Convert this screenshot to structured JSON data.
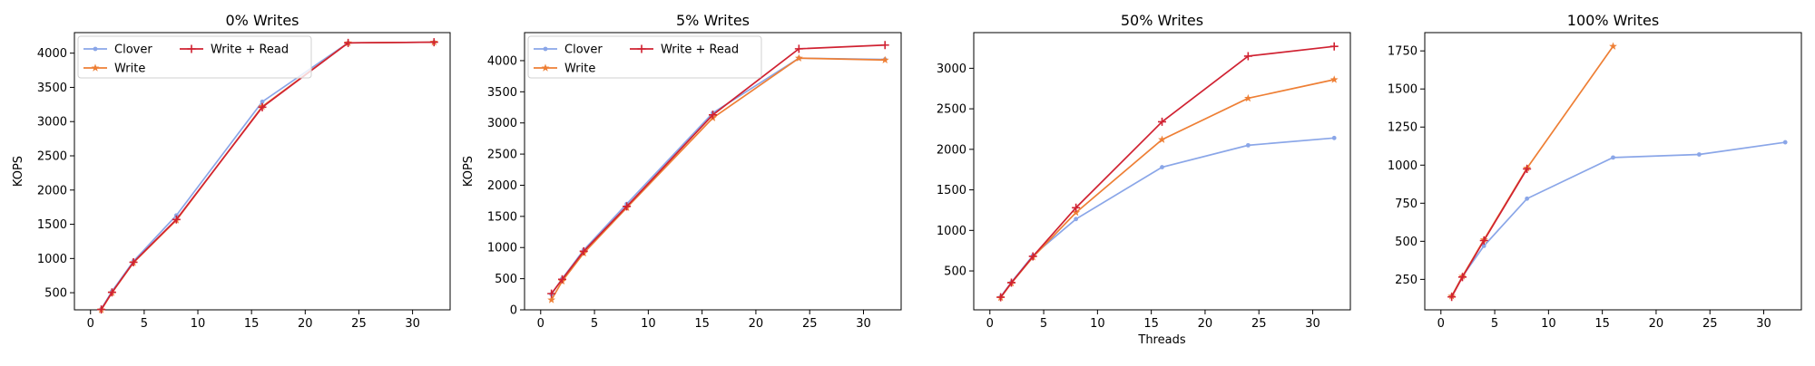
{
  "chart_data": [
    {
      "type": "line",
      "title": "0% Writes",
      "xlabel": "",
      "ylabel": "KOPS",
      "xlim": [
        -1.5,
        33.5
      ],
      "ylim": [
        250,
        4300
      ],
      "xticks": [
        0,
        5,
        10,
        15,
        20,
        25,
        30
      ],
      "yticks": [
        500,
        1000,
        1500,
        2000,
        2500,
        3000,
        3500,
        4000
      ],
      "legend": {
        "position": "top-left",
        "columns": 2
      },
      "series": [
        {
          "name": "Clover",
          "color": "#8AA6E8",
          "marker": "point",
          "x": [
            1,
            2,
            4,
            8,
            16,
            24,
            32
          ],
          "y": [
            260,
            520,
            960,
            1630,
            3290,
            4150,
            4160
          ]
        },
        {
          "name": "Write",
          "color": "#EE7F35",
          "marker": "star",
          "x": [
            1,
            2,
            4,
            8,
            16,
            24,
            32
          ],
          "y": [
            250,
            500,
            940,
            1560,
            3220,
            4150,
            4160
          ]
        },
        {
          "name": "Write + Read",
          "color": "#D02232",
          "marker": "plus",
          "x": [
            1,
            2,
            4,
            8,
            16,
            24,
            32
          ],
          "y": [
            255,
            505,
            945,
            1570,
            3210,
            4150,
            4160
          ]
        }
      ]
    },
    {
      "type": "line",
      "title": "5% Writes",
      "xlabel": "",
      "ylabel": "KOPS",
      "xlim": [
        -1.5,
        33.5
      ],
      "ylim": [
        0,
        4450
      ],
      "xticks": [
        0,
        5,
        10,
        15,
        20,
        25,
        30
      ],
      "yticks": [
        0,
        500,
        1000,
        1500,
        2000,
        2500,
        3000,
        3500,
        4000
      ],
      "legend": {
        "position": "top-left",
        "columns": 2
      },
      "series": [
        {
          "name": "Clover",
          "color": "#8AA6E8",
          "marker": "point",
          "x": [
            1,
            2,
            4,
            8,
            16,
            24,
            32
          ],
          "y": [
            250,
            500,
            960,
            1700,
            3160,
            4040,
            4020
          ]
        },
        {
          "name": "Write",
          "color": "#EE7F35",
          "marker": "star",
          "x": [
            1,
            2,
            4,
            8,
            16,
            24,
            32
          ],
          "y": [
            160,
            460,
            910,
            1640,
            3080,
            4040,
            4010
          ]
        },
        {
          "name": "Write + Read",
          "color": "#D02232",
          "marker": "plus",
          "x": [
            1,
            2,
            4,
            8,
            16,
            24,
            32
          ],
          "y": [
            260,
            490,
            940,
            1660,
            3130,
            4190,
            4250
          ]
        }
      ]
    },
    {
      "type": "line",
      "title": "50% Writes",
      "xlabel": "Threads",
      "ylabel": "",
      "xlim": [
        -1.5,
        33.5
      ],
      "ylim": [
        20,
        3440
      ],
      "xticks": [
        0,
        5,
        10,
        15,
        20,
        25,
        30
      ],
      "yticks": [
        500,
        1000,
        1500,
        2000,
        2500,
        3000
      ],
      "legend": null,
      "series": [
        {
          "name": "",
          "color": "#8AA6E8",
          "marker": "point",
          "x": [
            1,
            2,
            4,
            8,
            16,
            24,
            32
          ],
          "y": [
            180,
            360,
            690,
            1140,
            1780,
            2050,
            2140
          ]
        },
        {
          "name": "",
          "color": "#EE7F35",
          "marker": "star",
          "x": [
            1,
            2,
            4,
            8,
            16,
            24,
            32
          ],
          "y": [
            170,
            350,
            670,
            1220,
            2120,
            2630,
            2860
          ]
        },
        {
          "name": "",
          "color": "#D02232",
          "marker": "plus",
          "x": [
            1,
            2,
            4,
            8,
            16,
            24,
            32
          ],
          "y": [
            175,
            355,
            680,
            1280,
            2340,
            3150,
            3270
          ]
        }
      ]
    },
    {
      "type": "line",
      "title": "100% Writes",
      "xlabel": "",
      "ylabel": "",
      "xlim": [
        -1.5,
        33.5
      ],
      "ylim": [
        50,
        1870
      ],
      "xticks": [
        0,
        5,
        10,
        15,
        20,
        25,
        30
      ],
      "yticks": [
        250,
        500,
        750,
        1000,
        1250,
        1500,
        1750
      ],
      "legend": null,
      "series": [
        {
          "name": "",
          "color": "#8AA6E8",
          "marker": "point",
          "x": [
            1,
            2,
            4,
            8,
            16,
            24,
            32
          ],
          "y": [
            140,
            270,
            470,
            780,
            1050,
            1070,
            1150
          ]
        },
        {
          "name": "",
          "color": "#EE7F35",
          "marker": "star",
          "x": [
            1,
            2,
            4,
            8,
            16
          ],
          "y": [
            140,
            270,
            510,
            980,
            1780
          ]
        },
        {
          "name": "",
          "color": "#D02232",
          "marker": "plus",
          "x": [
            1,
            2,
            4,
            8
          ],
          "y": [
            135,
            265,
            505,
            975
          ]
        }
      ]
    }
  ]
}
